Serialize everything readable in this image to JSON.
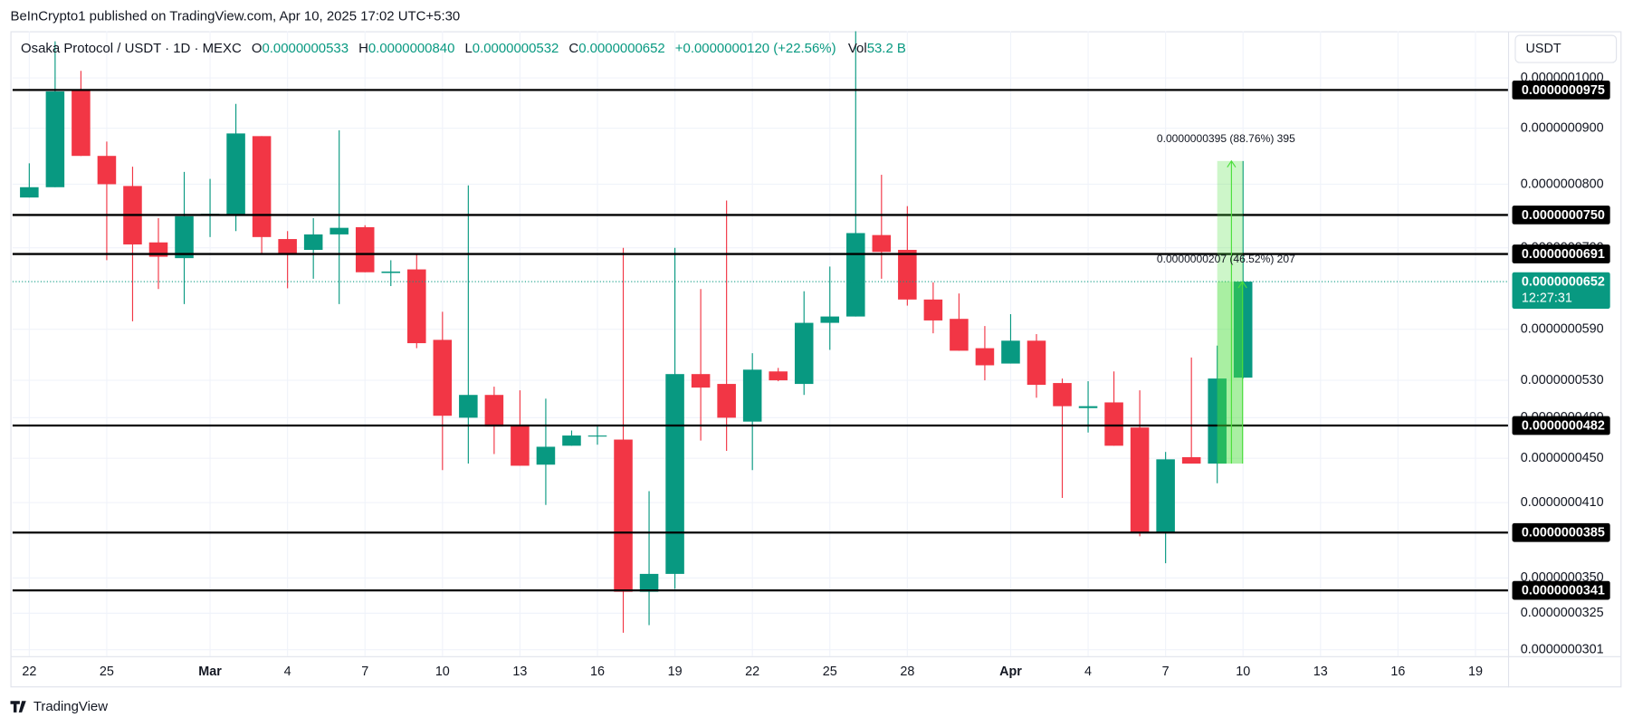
{
  "published": "BeInCrypto1 published on TradingView.com, Apr 10, 2025 17:02 UTC+5:30",
  "footer": "TradingView",
  "currency_button": "USDT",
  "header": {
    "symbol": "Osaka Protocol / USDT · 1D · MEXC",
    "ohlc": [
      {
        "key": "O",
        "value": "0.0000000533"
      },
      {
        "key": "H",
        "value": "0.0000000840"
      },
      {
        "key": "L",
        "value": "0.0000000532"
      },
      {
        "key": "C",
        "value": "0.0000000652"
      }
    ],
    "change": "+0.0000000120 (+22.56%)",
    "volume_key": "Vol",
    "volume": "53.2 B"
  },
  "chart_data": {
    "type": "candlestick",
    "log_scale": true,
    "grid": true,
    "up_color": "#089981",
    "down_color": "#f23645",
    "x": [
      0,
      1,
      2,
      3,
      4,
      5,
      6,
      7,
      8,
      9,
      10,
      11,
      12,
      13,
      14,
      15,
      16,
      17,
      18,
      19,
      20,
      21,
      22,
      23,
      24,
      25,
      26,
      27,
      28,
      29,
      30,
      31,
      32,
      33,
      34,
      35,
      36,
      37,
      38,
      39,
      40,
      41,
      42,
      43,
      44,
      45,
      46,
      47
    ],
    "open": [
      7.78e-08,
      7.95e-08,
      9.75e-08,
      8.49e-08,
      7.97e-08,
      7.08e-08,
      6.85e-08,
      7.5e-08,
      7.5e-08,
      8.85e-08,
      7.13e-08,
      6.97e-08,
      7.2e-08,
      7.31e-08,
      6.64e-08,
      6.69e-08,
      5.77e-08,
      4.9e-08,
      5.14e-08,
      4.82e-08,
      4.44e-08,
      4.62e-08,
      4.71e-08,
      4.68e-08,
      3.4e-08,
      3.53e-08,
      5.37e-08,
      5.26e-08,
      4.86e-08,
      5.4e-08,
      5.26e-08,
      5.98e-08,
      6.06e-08,
      7.19e-08,
      6.97e-08,
      6.28e-08,
      6.03e-08,
      5.67e-08,
      5.49e-08,
      5.76e-08,
      5.27e-08,
      5e-08,
      5.06e-08,
      4.8e-08,
      3.85e-08,
      4.51e-08,
      4.45e-08,
      5.33e-08
    ],
    "high": [
      8.36e-08,
      1.08e-07,
      1.015e-07,
      8.75e-08,
      8.3e-08,
      7.45e-08,
      8.21e-08,
      8.09e-08,
      9.47e-08,
      8.85e-08,
      7.25e-08,
      7.45e-08,
      8.96e-08,
      7.34e-08,
      6.82e-08,
      6.91e-08,
      6.12e-08,
      7.98e-08,
      5.23e-08,
      5.19e-08,
      5.1e-08,
      4.77e-08,
      4.81e-08,
      7e-08,
      4.2e-08,
      7e-08,
      6.42e-08,
      7.73e-08,
      5.61e-08,
      5.44e-08,
      6.39e-08,
      6.73e-08,
      1.108e-07,
      8.16e-08,
      7.64e-08,
      6.51e-08,
      6.36e-08,
      5.94e-08,
      6.09e-08,
      5.84e-08,
      5.32e-08,
      5.29e-08,
      5.4e-08,
      5.19e-08,
      4.56e-08,
      5.56e-08,
      5.7e-08,
      8.4e-08
    ],
    "low": [
      7.78e-08,
      7.95e-08,
      8.49e-08,
      6.82e-08,
      6e-08,
      6.42e-08,
      6.22e-08,
      7.16e-08,
      7.25e-08,
      6.9e-08,
      6.43e-08,
      6.56e-08,
      6.22e-08,
      6.65e-08,
      6.46e-08,
      5.67e-08,
      4.39e-08,
      4.45e-08,
      4.54e-08,
      4.43e-08,
      4.08e-08,
      4.62e-08,
      4.63e-08,
      3.12e-08,
      3.17e-08,
      3.42e-08,
      4.67e-08,
      4.57e-08,
      4.39e-08,
      5.29e-08,
      5.14e-08,
      5.65e-08,
      6.06e-08,
      6.56e-08,
      6.2e-08,
      5.85e-08,
      5.64e-08,
      5.3e-08,
      5.49e-08,
      5.11e-08,
      4.14e-08,
      4.75e-08,
      4.62e-08,
      3.82e-08,
      3.61e-08,
      4.45e-08,
      4.27e-08,
      5.32e-08
    ],
    "close": [
      7.95e-08,
      9.72e-08,
      8.49e-08,
      8e-08,
      7.05e-08,
      6.87e-08,
      7.48e-08,
      7.52e-08,
      8.9e-08,
      7.16e-08,
      6.92e-08,
      7.2e-08,
      7.3e-08,
      6.65e-08,
      6.66e-08,
      5.73e-08,
      4.92e-08,
      5.14e-08,
      4.81e-08,
      4.43e-08,
      4.61e-08,
      4.72e-08,
      4.72e-08,
      3.4e-08,
      3.53e-08,
      5.37e-08,
      5.22e-08,
      4.9e-08,
      5.42e-08,
      5.3e-08,
      5.98e-08,
      6.06e-08,
      7.22e-08,
      6.94e-08,
      6.28e-08,
      6.01e-08,
      5.64e-08,
      5.47e-08,
      5.76e-08,
      5.25e-08,
      5.02e-08,
      5.02e-08,
      4.62e-08,
      3.85e-08,
      4.49e-08,
      4.45e-08,
      5.32e-08,
      6.52e-08
    ],
    "xlim": [
      -0.65,
      57.26
    ],
    "xticks": [
      {
        "value": 0,
        "label": "22"
      },
      {
        "value": 3,
        "label": "25"
      },
      {
        "value": 7,
        "label": "Mar"
      },
      {
        "value": 10,
        "label": "4"
      },
      {
        "value": 13,
        "label": "7"
      },
      {
        "value": 16,
        "label": "10"
      },
      {
        "value": 19,
        "label": "13"
      },
      {
        "value": 22,
        "label": "16"
      },
      {
        "value": 25,
        "label": "19"
      },
      {
        "value": 28,
        "label": "22"
      },
      {
        "value": 31,
        "label": "25"
      },
      {
        "value": 34,
        "label": "28"
      },
      {
        "value": 38,
        "label": "Apr"
      },
      {
        "value": 41,
        "label": "4"
      },
      {
        "value": 44,
        "label": "7"
      },
      {
        "value": 47,
        "label": "10"
      },
      {
        "value": 50,
        "label": "13"
      },
      {
        "value": 53,
        "label": "16"
      },
      {
        "value": 56,
        "label": "19"
      }
    ],
    "ylim": [
      2.97e-08,
      1.103e-07
    ],
    "yticks": [
      {
        "value": 1e-07,
        "label": "0.0000001000"
      },
      {
        "value": 9e-08,
        "label": "0.0000000900"
      },
      {
        "value": 8e-08,
        "label": "0.0000000800"
      },
      {
        "value": 7e-08,
        "label": "0.0000000700"
      },
      {
        "value": 5.9e-08,
        "label": "0.0000000590"
      },
      {
        "value": 5.3e-08,
        "label": "0.0000000530"
      },
      {
        "value": 4.9e-08,
        "label": "0.0000000490"
      },
      {
        "value": 4.5e-08,
        "label": "0.0000000450"
      },
      {
        "value": 4.1e-08,
        "label": "0.0000000410"
      },
      {
        "value": 3.5e-08,
        "label": "0.0000000350"
      },
      {
        "value": 3.25e-08,
        "label": "0.0000000325"
      },
      {
        "value": 3.01e-08,
        "label": "0.0000000301"
      }
    ],
    "levels": [
      {
        "value": 9.75e-08,
        "label": "0.0000000975"
      },
      {
        "value": 7.5e-08,
        "label": "0.0000000750"
      },
      {
        "value": 6.91e-08,
        "label": "0.0000000691"
      },
      {
        "value": 4.82e-08,
        "label": "0.0000000482"
      },
      {
        "value": 3.85e-08,
        "label": "0.0000000385"
      },
      {
        "value": 3.41e-08,
        "label": "0.0000000341"
      }
    ],
    "last_price": {
      "value": 6.52e-08,
      "label": "0.0000000652",
      "countdown": "12:27:31"
    },
    "measures": [
      {
        "from": 4.45e-08,
        "to": 8.4e-08,
        "label": "0.0000000395 (88.76%) 395"
      },
      {
        "from": 4.45e-08,
        "to": 6.52e-08,
        "label": "0.0000000207 (46.52%) 207"
      }
    ]
  }
}
